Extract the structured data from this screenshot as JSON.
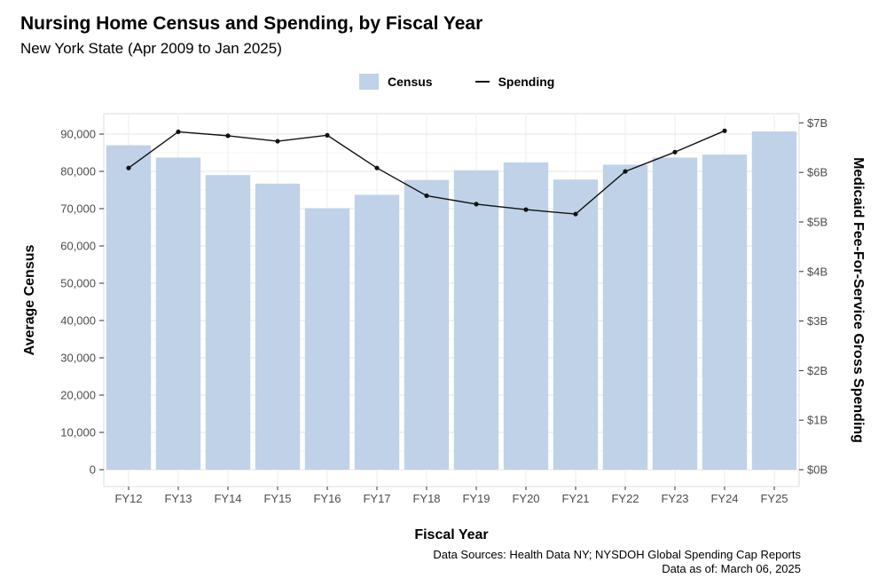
{
  "chart_data": {
    "type": "bar+line",
    "title": "Nursing Home Census and Spending, by Fiscal Year",
    "subtitle": "New York State (Apr 2009 to Jan 2025)",
    "xlabel": "Fiscal Year",
    "ylabel_left": "Average Census",
    "ylabel_right": "Medicaid Fee-For-Service Gross Spending",
    "categories": [
      "FY12",
      "FY13",
      "FY14",
      "FY15",
      "FY16",
      "FY17",
      "FY18",
      "FY19",
      "FY20",
      "FY21",
      "FY22",
      "FY23",
      "FY24",
      "FY25"
    ],
    "series": [
      {
        "name": "Census",
        "type": "bar",
        "axis": "left",
        "color": "#bfd2e8",
        "values": [
          87000,
          83700,
          79000,
          76700,
          70100,
          73700,
          77700,
          80300,
          82400,
          77800,
          81800,
          83700,
          84500,
          90700
        ]
      },
      {
        "name": "Spending",
        "type": "line",
        "axis": "right",
        "color": "#111111",
        "unit": "billions USD",
        "values": [
          6.09,
          6.82,
          6.74,
          6.63,
          6.75,
          6.09,
          5.53,
          5.36,
          5.25,
          5.16,
          6.02,
          6.41,
          6.84,
          null
        ]
      }
    ],
    "ylim_left": [
      0,
      95000
    ],
    "ylim_right": [
      0,
      7.3
    ],
    "yticks_left": [
      "0",
      "10,000",
      "20,000",
      "30,000",
      "40,000",
      "50,000",
      "60,000",
      "70,000",
      "80,000",
      "90,000"
    ],
    "yticks_left_values": [
      0,
      10000,
      20000,
      30000,
      40000,
      50000,
      60000,
      70000,
      80000,
      90000
    ],
    "yticks_right": [
      "$0B",
      "$1B",
      "$2B",
      "$3B",
      "$4B",
      "$5B",
      "$6B",
      "$7B"
    ],
    "yticks_right_values": [
      0,
      1,
      2,
      3,
      4,
      5,
      6,
      7
    ],
    "legend": {
      "position": "top",
      "items": [
        "Census",
        "Spending"
      ]
    },
    "grid": true
  },
  "footer": {
    "sources": "Data Sources: Health Data NY; NYSDOH Global Spending Cap Reports",
    "asof": "Data as of: March 06, 2025"
  }
}
